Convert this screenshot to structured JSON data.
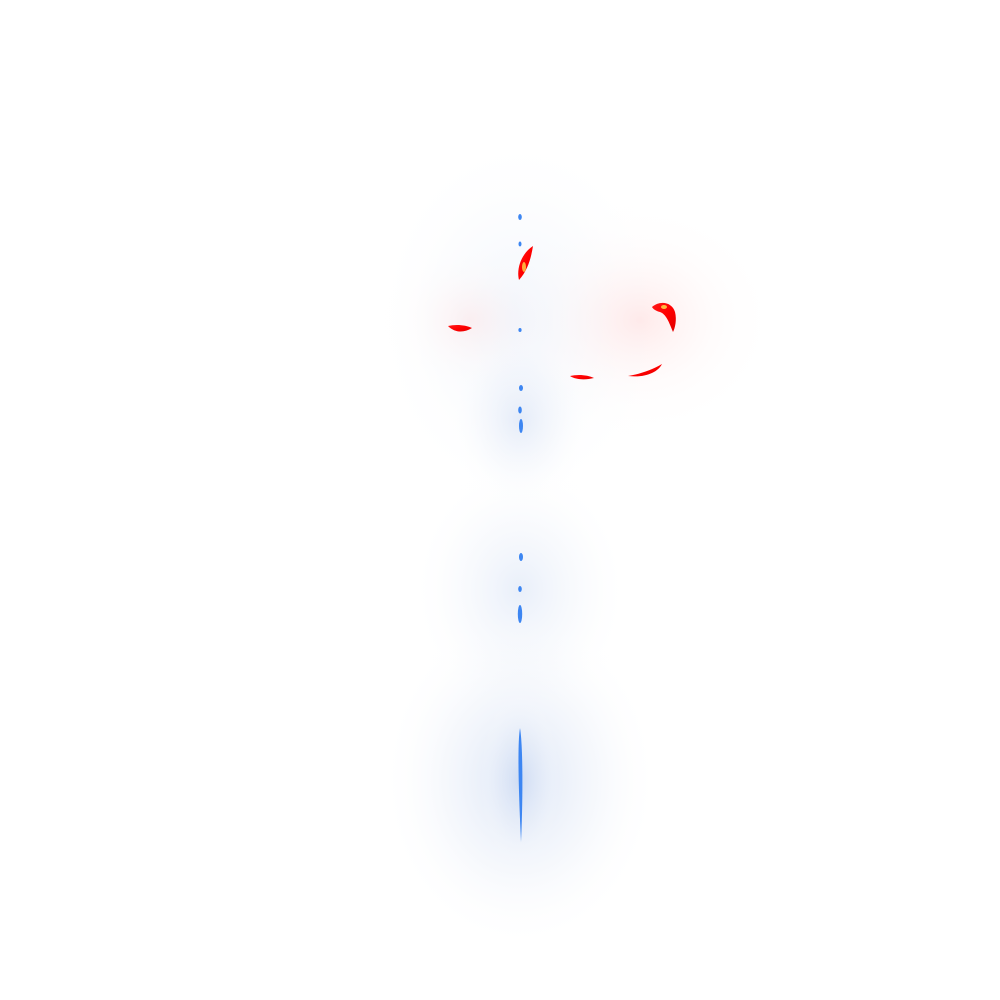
{
  "canvas": {
    "background": "#ffffff",
    "palette": {
      "blue_mark": "#3d86f2",
      "blue_glow": "#dde6f6",
      "red_mark": "#ff0000",
      "red_core": "#ffd84a",
      "red_glow": "#ffe8e8"
    }
  }
}
